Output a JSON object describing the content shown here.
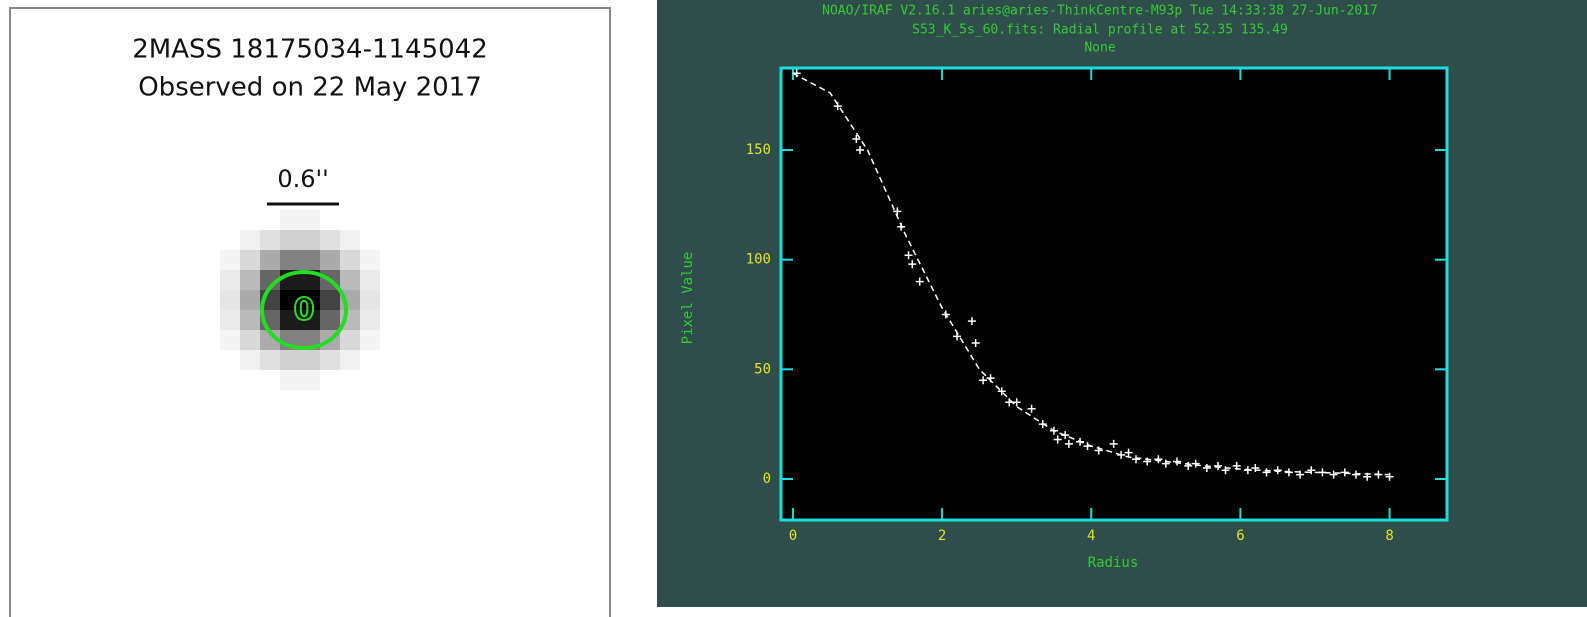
{
  "image_panel": {
    "title": "2MASS 18175034-1145042",
    "subtitle": "Observed on 22 May 2017",
    "scale_label": "0.6''",
    "marker_label": "0"
  },
  "chart_data": {
    "type": "scatter",
    "title": "NOAO/IRAF V2.16.1 aries@aries-ThinkCentre-M93p Tue 14:33:38 27-Jun-2017",
    "subtitle": "S53_K_5s_60.fits: Radial profile at 52.35 135.49",
    "note": "None",
    "xlabel": "Radius",
    "ylabel": "Pixel Value",
    "xlim": [
      -0.16,
      8.77
    ],
    "ylim": [
      -18.7,
      187.4
    ],
    "xticks": [
      0,
      2,
      4,
      6,
      8
    ],
    "yticks": [
      0,
      50,
      100,
      150
    ],
    "series": [
      {
        "color": "#ffffff",
        "x": [
          0.05,
          0.6,
          0.85,
          0.9,
          1.4,
          1.45,
          1.55,
          1.6,
          1.7,
          2.05,
          2.2,
          2.4,
          2.45,
          2.55,
          2.65,
          2.8,
          2.9,
          3.0,
          3.2,
          3.35,
          3.5,
          3.55,
          3.65,
          3.7,
          3.85,
          3.95,
          4.1,
          4.3,
          4.4,
          4.5,
          4.6,
          4.75,
          4.9,
          5.0,
          5.15,
          5.3,
          5.4,
          5.55,
          5.7,
          5.8,
          5.95,
          6.1,
          6.2,
          6.35,
          6.5,
          6.65,
          6.8,
          6.95,
          7.1,
          7.25,
          7.4,
          7.55,
          7.7,
          7.85,
          8.0
        ],
        "values": [
          185,
          170,
          155,
          150,
          122,
          115,
          102,
          98,
          90,
          75,
          65,
          72,
          62,
          45,
          46,
          40,
          35,
          35,
          32,
          25,
          22,
          18,
          20,
          16,
          17,
          15,
          13,
          16,
          11,
          12,
          9,
          8,
          9,
          7,
          8,
          6,
          7,
          5,
          6,
          4,
          6,
          4,
          5,
          3,
          4,
          3,
          2,
          4,
          3,
          2,
          3,
          2,
          1,
          2,
          1
        ]
      },
      {
        "color": "#ffffff",
        "x": [
          0,
          0.5,
          1,
          1.5,
          2,
          2.5,
          3,
          3.5,
          4,
          4.5,
          5,
          5.5,
          6,
          6.5,
          7,
          7.5,
          8
        ],
        "values": [
          185,
          176,
          150,
          112,
          78,
          50,
          33,
          22,
          15,
          10,
          8,
          6,
          4.5,
          3.5,
          3,
          2.5,
          2
        ]
      }
    ]
  }
}
